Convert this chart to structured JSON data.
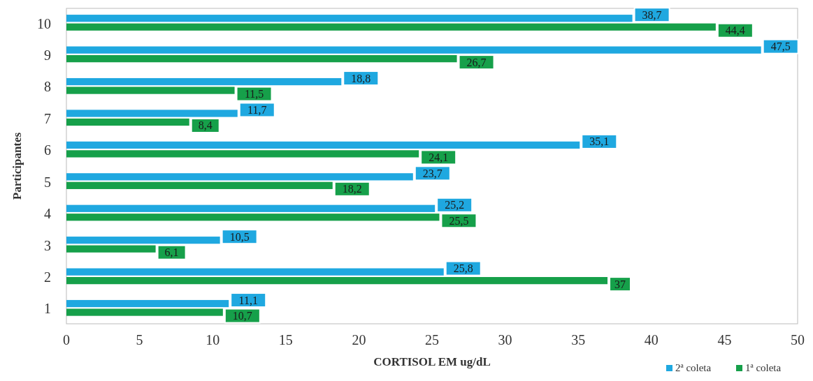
{
  "chart_data": {
    "type": "bar",
    "orientation": "horizontal",
    "xlabel": "CORTISOL  EM ug/dL",
    "ylabel": "Participantes",
    "categories": [
      "10",
      "9",
      "8",
      "7",
      "6",
      "5",
      "4",
      "3",
      "2",
      "1"
    ],
    "series": [
      {
        "name": "2ª coleta",
        "color": "#1fa8e0",
        "values": [
          38.7,
          47.5,
          18.8,
          11.7,
          35.1,
          23.7,
          25.2,
          10.5,
          25.8,
          11.1
        ],
        "value_labels": [
          "38,7",
          "47,5",
          "18,8",
          "11,7",
          "35,1",
          "23,7",
          "25,2",
          "10,5",
          "25,8",
          "11,1"
        ]
      },
      {
        "name": "1ª coleta",
        "color": "#16a04a",
        "values": [
          44.4,
          26.7,
          11.5,
          8.4,
          24.1,
          18.2,
          25.5,
          6.1,
          37,
          10.7
        ],
        "value_labels": [
          "44,4",
          "26,7",
          "11,5",
          "8,4",
          "24,1",
          "18,2",
          "25,5",
          "6,1",
          "37",
          "10,7"
        ]
      }
    ],
    "xlim": [
      0,
      50
    ],
    "xticks": [
      0,
      5,
      10,
      15,
      20,
      25,
      30,
      35,
      40,
      45,
      50
    ],
    "grid": false,
    "legend": "bottom right"
  }
}
